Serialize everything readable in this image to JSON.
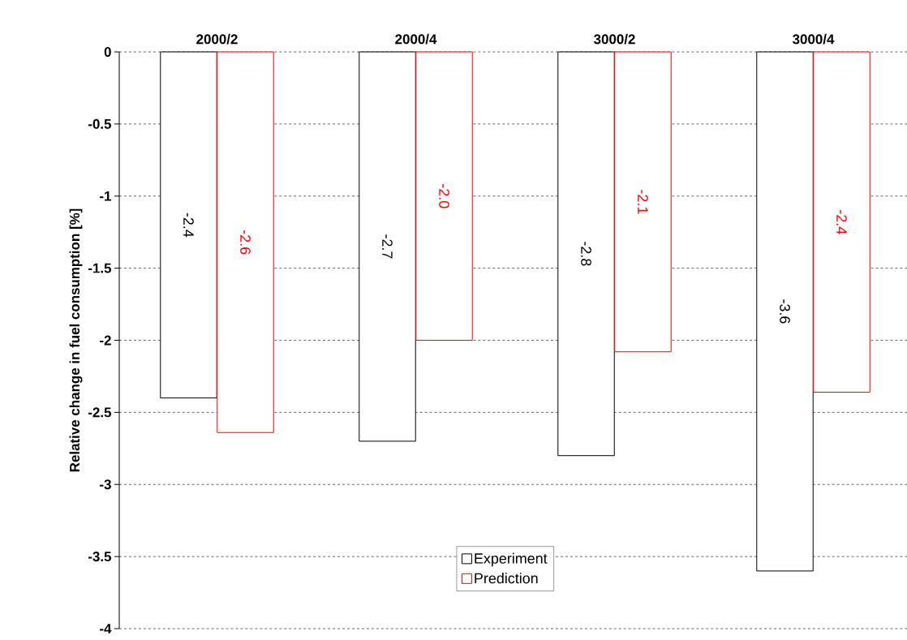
{
  "chart_data": {
    "type": "bar",
    "ylabel": "Relative change in fuel consumption [%]",
    "categories": [
      "2000/2",
      "2000/4",
      "3000/2",
      "3000/4"
    ],
    "series": [
      {
        "name": "Experiment",
        "color": "#000000",
        "values": [
          -2.4,
          -2.7,
          -2.8,
          -3.6
        ],
        "value_labels": [
          "-2.4",
          "-2.7",
          "-2.8",
          "-3.6"
        ]
      },
      {
        "name": "Prediction",
        "color": "#ff0000",
        "values": [
          -2.64,
          -2.0,
          -2.08,
          -2.36
        ],
        "value_labels": [
          "-2.6",
          "-2.0",
          "-2.1",
          "-2.4"
        ]
      }
    ],
    "ylim": [
      -4,
      0
    ],
    "yticks": [
      -4,
      -3.5,
      -3,
      -2.5,
      -2,
      -1.5,
      -1,
      -0.5,
      0
    ],
    "grid": "y",
    "line_style": "dashed",
    "legend": "bottom"
  }
}
